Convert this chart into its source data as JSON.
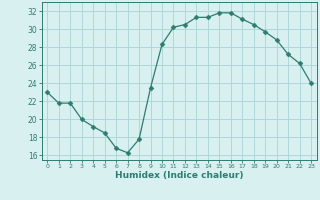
{
  "xlabel": "Humidex (Indice chaleur)",
  "x": [
    0,
    1,
    2,
    3,
    4,
    5,
    6,
    7,
    8,
    9,
    10,
    11,
    12,
    13,
    14,
    15,
    16,
    17,
    18,
    19,
    20,
    21,
    22,
    23
  ],
  "y": [
    23,
    21.8,
    21.8,
    20.0,
    19.2,
    18.5,
    16.8,
    16.3,
    17.8,
    23.5,
    28.3,
    30.2,
    30.5,
    31.3,
    31.3,
    31.8,
    31.8,
    31.1,
    30.5,
    29.7,
    28.8,
    27.2,
    26.2,
    24.0
  ],
  "line_color": "#2d7d6e",
  "marker": "D",
  "marker_size": 2.5,
  "bg_color": "#d9f0f0",
  "grid_color": "#b0d8d8",
  "tick_color": "#2d7d6e",
  "label_color": "#2d7d6e",
  "ylim": [
    15.5,
    33.0
  ],
  "xlim": [
    -0.5,
    23.5
  ],
  "yticks": [
    16,
    18,
    20,
    22,
    24,
    26,
    28,
    30,
    32
  ],
  "xticks": [
    0,
    1,
    2,
    3,
    4,
    5,
    6,
    7,
    8,
    9,
    10,
    11,
    12,
    13,
    14,
    15,
    16,
    17,
    18,
    19,
    20,
    21,
    22,
    23
  ]
}
